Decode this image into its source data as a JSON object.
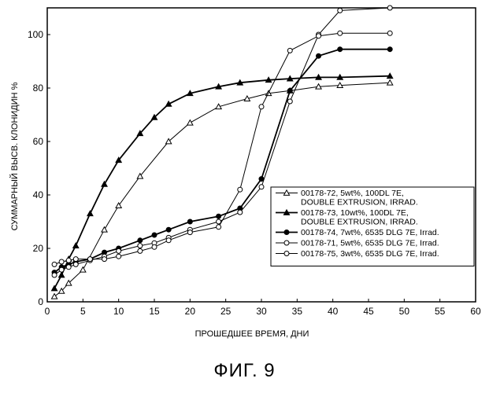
{
  "caption": "ФИГ. 9",
  "chart_data": {
    "type": "line",
    "xlabel": "ПРОШЕДШЕЕ ВРЕМЯ, ДНИ",
    "ylabel": "СУММАРНЫЙ ВЫСВ. КЛОНИДИН %",
    "xlim": [
      0,
      60
    ],
    "ylim": [
      0,
      110
    ],
    "xticks": [
      0,
      5,
      10,
      15,
      20,
      25,
      30,
      35,
      40,
      45,
      50,
      55,
      60
    ],
    "yticks": [
      0,
      20,
      40,
      60,
      80,
      100
    ],
    "grid": false,
    "legend_position": "bottom-right",
    "series": [
      {
        "name_lines": [
          "00178-72, 5wt%, 100DL 7E,",
          "DOUBLE EXTRUSION, IRRAD."
        ],
        "marker": "triangle-open",
        "color": "#000000",
        "x": [
          1,
          2,
          3,
          5,
          8,
          10,
          13,
          17,
          20,
          24,
          28,
          31,
          34,
          38,
          41,
          48
        ],
        "y": [
          2,
          4,
          7,
          12,
          27,
          36,
          47,
          60,
          67,
          73,
          76,
          78,
          79,
          80.5,
          81,
          82
        ]
      },
      {
        "name_lines": [
          "00178-73, 10wt%, 100DL 7E,",
          "DOUBLE EXTRUSION, IRRAD."
        ],
        "marker": "triangle-filled",
        "color": "#000000",
        "x": [
          1,
          2,
          3,
          4,
          6,
          8,
          10,
          13,
          15,
          17,
          20,
          24,
          27,
          31,
          34,
          38,
          41,
          48
        ],
        "y": [
          5,
          10,
          16,
          21,
          33,
          44,
          53,
          63,
          69,
          74,
          78,
          80.5,
          82,
          83,
          83.5,
          84,
          84,
          84.5
        ]
      },
      {
        "name_lines": [
          "00178-74, 7wt%, 6535 DLG 7E, Irrad."
        ],
        "marker": "circle-filled",
        "color": "#000000",
        "x": [
          1,
          2,
          3,
          4,
          6,
          8,
          10,
          13,
          15,
          17,
          20,
          24,
          27,
          30,
          34,
          38,
          41,
          48
        ],
        "y": [
          11,
          13,
          14,
          15,
          16,
          18.5,
          20,
          23,
          25,
          27,
          30,
          32,
          35,
          46,
          79,
          92,
          94.5,
          94.5
        ]
      },
      {
        "name_lines": [
          "00178-71, 5wt%, 6535 DLG 7E, Irrad."
        ],
        "marker": "circle-open",
        "color": "#000000",
        "x": [
          1,
          2,
          3,
          4,
          6,
          8,
          10,
          13,
          15,
          17,
          20,
          24,
          27,
          30,
          34,
          38,
          41,
          48
        ],
        "y": [
          10,
          12,
          13,
          14,
          15.5,
          17,
          19,
          21,
          22,
          24,
          27,
          30,
          33.5,
          43,
          75,
          100,
          109,
          110
        ]
      },
      {
        "name_lines": [
          "00178-75, 3wt%, 6535 DLG 7E, Irrad."
        ],
        "marker": "circle-open",
        "color": "#000000",
        "x": [
          1,
          2,
          3,
          4,
          6,
          8,
          10,
          13,
          15,
          17,
          20,
          24,
          27,
          30,
          34,
          38,
          41,
          48
        ],
        "y": [
          14,
          15,
          15.5,
          16,
          16,
          16,
          17,
          19,
          20.5,
          23,
          26,
          28,
          42,
          73,
          94,
          99.5,
          100.5,
          100.5
        ]
      }
    ]
  }
}
